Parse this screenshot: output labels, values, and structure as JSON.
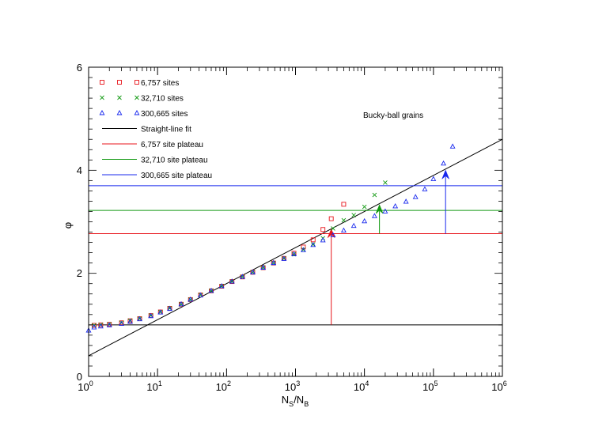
{
  "chart_data": {
    "type": "scatter",
    "annotation": "Bucky-ball grains",
    "xlabel": {
      "main": "N",
      "sub1": "S",
      "mid": "/N",
      "sub2": "B"
    },
    "ylabel": "φ",
    "xscale": "log",
    "xlim": [
      1,
      1000000
    ],
    "ylim": [
      0,
      6
    ],
    "x_ticks": [
      1,
      10,
      100,
      1000,
      10000,
      100000,
      1000000
    ],
    "x_tick_labels": [
      {
        "base": "10",
        "exp": "0"
      },
      {
        "base": "10",
        "exp": "1"
      },
      {
        "base": "10",
        "exp": "2"
      },
      {
        "base": "10",
        "exp": "3"
      },
      {
        "base": "10",
        "exp": "4"
      },
      {
        "base": "10",
        "exp": "5"
      },
      {
        "base": "10",
        "exp": "6"
      }
    ],
    "y_ticks": [
      0,
      2,
      4,
      6
    ],
    "y_tick_labels": [
      "0",
      "2",
      "4",
      "6"
    ],
    "legend_position": "top-left",
    "series": [
      {
        "name": "6,757 sites",
        "marker": "square",
        "color": "#e8151b",
        "x": [
          1.2,
          1.5,
          2,
          3,
          4,
          5.5,
          8,
          11,
          15,
          22,
          30,
          42,
          60,
          85,
          120,
          170,
          240,
          340,
          480,
          680,
          950,
          1300,
          1800,
          2500,
          3300,
          5000
        ],
        "y": [
          0.99,
          1.0,
          1.01,
          1.04,
          1.08,
          1.12,
          1.18,
          1.25,
          1.32,
          1.4,
          1.49,
          1.58,
          1.66,
          1.75,
          1.84,
          1.93,
          2.02,
          2.11,
          2.2,
          2.29,
          2.39,
          2.51,
          2.65,
          2.85,
          3.06,
          3.34
        ]
      },
      {
        "name": "32,710 sites",
        "marker": "cross",
        "color": "#119911",
        "x": [
          1.2,
          1.5,
          2,
          3,
          4,
          5.5,
          8,
          11,
          15,
          22,
          30,
          42,
          60,
          85,
          120,
          170,
          240,
          340,
          480,
          680,
          950,
          1300,
          1800,
          2500,
          3500,
          5000,
          7000,
          10000,
          14000,
          20000
        ],
        "y": [
          0.99,
          1.0,
          1.01,
          1.04,
          1.08,
          1.12,
          1.18,
          1.25,
          1.32,
          1.4,
          1.49,
          1.58,
          1.66,
          1.75,
          1.84,
          1.93,
          2.02,
          2.11,
          2.2,
          2.29,
          2.37,
          2.46,
          2.56,
          2.68,
          2.87,
          3.03,
          3.13,
          3.29,
          3.52,
          3.76
        ]
      },
      {
        "name": "300,665 sites",
        "marker": "triangle",
        "color": "#1828ee",
        "x": [
          1.0,
          1.2,
          1.5,
          2,
          3,
          4,
          5.5,
          8,
          11,
          15,
          22,
          30,
          42,
          60,
          85,
          120,
          170,
          240,
          340,
          480,
          680,
          950,
          1300,
          1800,
          2500,
          3500,
          5000,
          7000,
          10000,
          14000,
          20000,
          28000,
          40000,
          55000,
          75000,
          100000,
          140000,
          190000
        ],
        "y": [
          0.89,
          0.95,
          0.97,
          0.99,
          1.02,
          1.06,
          1.11,
          1.17,
          1.24,
          1.31,
          1.4,
          1.49,
          1.57,
          1.66,
          1.75,
          1.84,
          1.93,
          2.02,
          2.11,
          2.2,
          2.28,
          2.37,
          2.45,
          2.55,
          2.64,
          2.74,
          2.83,
          2.92,
          3.01,
          3.11,
          3.2,
          3.3,
          3.39,
          3.48,
          3.63,
          3.83,
          4.13,
          4.46
        ]
      }
    ],
    "lines": [
      {
        "name": "Straight-line fit",
        "color": "#000000",
        "x": [
          1,
          1000000
        ],
        "y": [
          0.4,
          4.6
        ]
      },
      {
        "name": "",
        "color": "#000000",
        "x": [
          1,
          1000000
        ],
        "y": [
          1.0,
          1.0
        ]
      },
      {
        "name": "6,757 site plateau",
        "color": "#e8151b",
        "x": [
          1,
          1000000
        ],
        "y": [
          2.77,
          2.77
        ]
      },
      {
        "name": "32,710 site plateau",
        "color": "#119911",
        "x": [
          1,
          1000000
        ],
        "y": [
          3.22,
          3.22
        ]
      },
      {
        "name": "300,665 site plateau",
        "color": "#1828ee",
        "x": [
          1,
          1000000
        ],
        "y": [
          3.7,
          3.7
        ]
      }
    ],
    "arrows": [
      {
        "color": "#e8151b",
        "x": 3300,
        "y_from": 1.0,
        "y_to": 2.86
      },
      {
        "color": "#119911",
        "x": 16500,
        "y_from": 2.77,
        "y_to": 3.33
      },
      {
        "color": "#1828ee",
        "x": 150000,
        "y_from": 2.77,
        "y_to": 4.0
      }
    ]
  }
}
